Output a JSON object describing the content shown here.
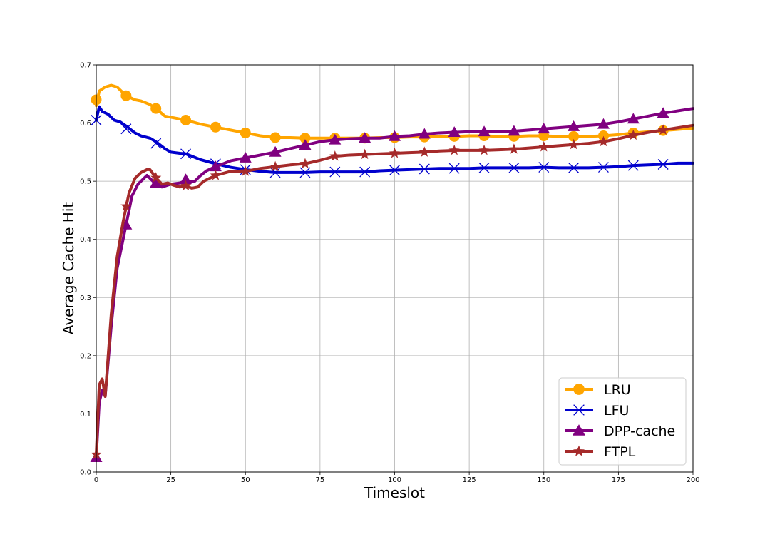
{
  "chart_data": {
    "type": "line",
    "title": "",
    "xlabel": "Timeslot",
    "ylabel": "Average Cache Hit",
    "xlim": [
      0,
      200
    ],
    "ylim": [
      0.0,
      0.7
    ],
    "xticks": [
      0,
      25,
      50,
      75,
      100,
      125,
      150,
      175,
      200
    ],
    "yticks": [
      0.0,
      0.1,
      0.2,
      0.3,
      0.4,
      0.5,
      0.6,
      0.7
    ],
    "xtick_labels": [
      "0",
      "25",
      "50",
      "75",
      "100",
      "125",
      "150",
      "175",
      "200"
    ],
    "ytick_labels": [
      "0.0",
      "0.1",
      "0.2",
      "0.3",
      "0.4",
      "0.5",
      "0.6",
      "0.7"
    ],
    "grid": true,
    "legend_position": "lower-right",
    "series": [
      {
        "name": "LRU",
        "color": "#FFA500",
        "marker": "circle",
        "points": [
          [
            0,
            0.63
          ],
          [
            1,
            0.655
          ],
          [
            3,
            0.662
          ],
          [
            5,
            0.665
          ],
          [
            7,
            0.662
          ],
          [
            10,
            0.647
          ],
          [
            13,
            0.64
          ],
          [
            15,
            0.638
          ],
          [
            18,
            0.632
          ],
          [
            20,
            0.625
          ],
          [
            23,
            0.612
          ],
          [
            25,
            0.61
          ],
          [
            28,
            0.607
          ],
          [
            30,
            0.605
          ],
          [
            35,
            0.598
          ],
          [
            40,
            0.593
          ],
          [
            45,
            0.588
          ],
          [
            50,
            0.583
          ],
          [
            55,
            0.578
          ],
          [
            60,
            0.575
          ],
          [
            65,
            0.575
          ],
          [
            70,
            0.574
          ],
          [
            75,
            0.574
          ],
          [
            80,
            0.574
          ],
          [
            85,
            0.574
          ],
          [
            90,
            0.574
          ],
          [
            95,
            0.575
          ],
          [
            100,
            0.575
          ],
          [
            105,
            0.576
          ],
          [
            110,
            0.576
          ],
          [
            115,
            0.577
          ],
          [
            120,
            0.577
          ],
          [
            125,
            0.578
          ],
          [
            130,
            0.578
          ],
          [
            135,
            0.577
          ],
          [
            140,
            0.577
          ],
          [
            145,
            0.578
          ],
          [
            150,
            0.578
          ],
          [
            155,
            0.577
          ],
          [
            160,
            0.577
          ],
          [
            165,
            0.577
          ],
          [
            170,
            0.578
          ],
          [
            175,
            0.58
          ],
          [
            180,
            0.583
          ],
          [
            185,
            0.585
          ],
          [
            190,
            0.587
          ],
          [
            195,
            0.589
          ],
          [
            200,
            0.591
          ]
        ],
        "marker_points": [
          [
            0,
            0.64
          ],
          [
            10,
            0.647
          ],
          [
            20,
            0.625
          ],
          [
            30,
            0.605
          ],
          [
            40,
            0.593
          ],
          [
            50,
            0.583
          ],
          [
            60,
            0.575
          ],
          [
            70,
            0.574
          ],
          [
            80,
            0.574
          ],
          [
            90,
            0.574
          ],
          [
            100,
            0.575
          ],
          [
            110,
            0.576
          ],
          [
            120,
            0.577
          ],
          [
            130,
            0.578
          ],
          [
            140,
            0.577
          ],
          [
            150,
            0.578
          ],
          [
            160,
            0.577
          ],
          [
            170,
            0.578
          ],
          [
            180,
            0.583
          ],
          [
            190,
            0.587
          ]
        ]
      },
      {
        "name": "LFU",
        "color": "#0000CD",
        "marker": "x",
        "points": [
          [
            0,
            0.605
          ],
          [
            1,
            0.628
          ],
          [
            2,
            0.62
          ],
          [
            4,
            0.615
          ],
          [
            6,
            0.605
          ],
          [
            8,
            0.602
          ],
          [
            10,
            0.595
          ],
          [
            13,
            0.583
          ],
          [
            15,
            0.578
          ],
          [
            18,
            0.574
          ],
          [
            20,
            0.568
          ],
          [
            23,
            0.556
          ],
          [
            25,
            0.55
          ],
          [
            28,
            0.548
          ],
          [
            30,
            0.547
          ],
          [
            35,
            0.537
          ],
          [
            40,
            0.53
          ],
          [
            45,
            0.524
          ],
          [
            50,
            0.52
          ],
          [
            55,
            0.517
          ],
          [
            60,
            0.515
          ],
          [
            65,
            0.515
          ],
          [
            70,
            0.515
          ],
          [
            75,
            0.516
          ],
          [
            80,
            0.516
          ],
          [
            85,
            0.516
          ],
          [
            90,
            0.516
          ],
          [
            95,
            0.518
          ],
          [
            100,
            0.519
          ],
          [
            105,
            0.52
          ],
          [
            110,
            0.521
          ],
          [
            115,
            0.522
          ],
          [
            120,
            0.522
          ],
          [
            125,
            0.522
          ],
          [
            130,
            0.523
          ],
          [
            135,
            0.523
          ],
          [
            140,
            0.523
          ],
          [
            145,
            0.523
          ],
          [
            150,
            0.524
          ],
          [
            155,
            0.523
          ],
          [
            160,
            0.523
          ],
          [
            165,
            0.523
          ],
          [
            170,
            0.524
          ],
          [
            175,
            0.525
          ],
          [
            180,
            0.527
          ],
          [
            185,
            0.528
          ],
          [
            190,
            0.529
          ],
          [
            195,
            0.531
          ],
          [
            200,
            0.531
          ]
        ],
        "marker_points": [
          [
            0,
            0.605
          ],
          [
            10,
            0.59
          ],
          [
            20,
            0.565
          ],
          [
            30,
            0.547
          ],
          [
            40,
            0.53
          ],
          [
            50,
            0.52
          ],
          [
            60,
            0.515
          ],
          [
            70,
            0.515
          ],
          [
            80,
            0.516
          ],
          [
            90,
            0.516
          ],
          [
            100,
            0.519
          ],
          [
            110,
            0.521
          ],
          [
            120,
            0.522
          ],
          [
            130,
            0.523
          ],
          [
            140,
            0.523
          ],
          [
            150,
            0.524
          ],
          [
            160,
            0.523
          ],
          [
            170,
            0.524
          ],
          [
            180,
            0.527
          ],
          [
            190,
            0.529
          ]
        ]
      },
      {
        "name": "DPP-cache",
        "color": "#800080",
        "marker": "triangle",
        "points": [
          [
            0,
            0.025
          ],
          [
            1,
            0.12
          ],
          [
            2,
            0.14
          ],
          [
            3,
            0.13
          ],
          [
            5,
            0.25
          ],
          [
            7,
            0.35
          ],
          [
            9,
            0.4
          ],
          [
            10,
            0.425
          ],
          [
            12,
            0.475
          ],
          [
            14,
            0.495
          ],
          [
            17,
            0.51
          ],
          [
            19,
            0.5
          ],
          [
            20,
            0.497
          ],
          [
            22,
            0.49
          ],
          [
            25,
            0.495
          ],
          [
            28,
            0.497
          ],
          [
            30,
            0.5
          ],
          [
            33,
            0.5
          ],
          [
            35,
            0.51
          ],
          [
            37,
            0.518
          ],
          [
            40,
            0.525
          ],
          [
            45,
            0.535
          ],
          [
            50,
            0.54
          ],
          [
            55,
            0.545
          ],
          [
            60,
            0.55
          ],
          [
            65,
            0.556
          ],
          [
            70,
            0.562
          ],
          [
            75,
            0.568
          ],
          [
            80,
            0.571
          ],
          [
            85,
            0.573
          ],
          [
            90,
            0.574
          ],
          [
            95,
            0.574
          ],
          [
            100,
            0.577
          ],
          [
            105,
            0.578
          ],
          [
            110,
            0.581
          ],
          [
            115,
            0.583
          ],
          [
            120,
            0.584
          ],
          [
            125,
            0.585
          ],
          [
            130,
            0.585
          ],
          [
            135,
            0.585
          ],
          [
            140,
            0.586
          ],
          [
            145,
            0.588
          ],
          [
            150,
            0.59
          ],
          [
            155,
            0.592
          ],
          [
            160,
            0.594
          ],
          [
            165,
            0.596
          ],
          [
            170,
            0.598
          ],
          [
            175,
            0.602
          ],
          [
            180,
            0.607
          ],
          [
            185,
            0.612
          ],
          [
            190,
            0.617
          ],
          [
            195,
            0.621
          ],
          [
            200,
            0.625
          ]
        ],
        "marker_points": [
          [
            0,
            0.025
          ],
          [
            10,
            0.425
          ],
          [
            20,
            0.497
          ],
          [
            30,
            0.503
          ],
          [
            40,
            0.525
          ],
          [
            50,
            0.54
          ],
          [
            60,
            0.55
          ],
          [
            70,
            0.562
          ],
          [
            80,
            0.571
          ],
          [
            90,
            0.574
          ],
          [
            100,
            0.577
          ],
          [
            110,
            0.581
          ],
          [
            120,
            0.584
          ],
          [
            130,
            0.585
          ],
          [
            140,
            0.586
          ],
          [
            150,
            0.59
          ],
          [
            160,
            0.594
          ],
          [
            170,
            0.598
          ],
          [
            180,
            0.607
          ],
          [
            190,
            0.617
          ]
        ]
      },
      {
        "name": "FTPL",
        "color": "#A52A2A",
        "marker": "star",
        "points": [
          [
            0,
            0.03
          ],
          [
            1,
            0.15
          ],
          [
            2,
            0.16
          ],
          [
            3,
            0.13
          ],
          [
            5,
            0.27
          ],
          [
            7,
            0.37
          ],
          [
            9,
            0.43
          ],
          [
            10,
            0.455
          ],
          [
            11,
            0.48
          ],
          [
            13,
            0.505
          ],
          [
            15,
            0.515
          ],
          [
            17,
            0.52
          ],
          [
            18,
            0.52
          ],
          [
            20,
            0.506
          ],
          [
            22,
            0.495
          ],
          [
            24,
            0.497
          ],
          [
            26,
            0.493
          ],
          [
            28,
            0.49
          ],
          [
            30,
            0.492
          ],
          [
            32,
            0.488
          ],
          [
            34,
            0.49
          ],
          [
            36,
            0.5
          ],
          [
            38,
            0.505
          ],
          [
            40,
            0.51
          ],
          [
            45,
            0.517
          ],
          [
            50,
            0.517
          ],
          [
            55,
            0.522
          ],
          [
            60,
            0.525
          ],
          [
            65,
            0.528
          ],
          [
            70,
            0.53
          ],
          [
            75,
            0.536
          ],
          [
            80,
            0.543
          ],
          [
            85,
            0.545
          ],
          [
            90,
            0.546
          ],
          [
            95,
            0.547
          ],
          [
            100,
            0.548
          ],
          [
            105,
            0.549
          ],
          [
            110,
            0.55
          ],
          [
            115,
            0.552
          ],
          [
            120,
            0.553
          ],
          [
            125,
            0.553
          ],
          [
            130,
            0.553
          ],
          [
            135,
            0.554
          ],
          [
            140,
            0.555
          ],
          [
            145,
            0.557
          ],
          [
            150,
            0.559
          ],
          [
            155,
            0.561
          ],
          [
            160,
            0.563
          ],
          [
            165,
            0.565
          ],
          [
            170,
            0.568
          ],
          [
            175,
            0.573
          ],
          [
            180,
            0.579
          ],
          [
            185,
            0.584
          ],
          [
            190,
            0.588
          ],
          [
            195,
            0.592
          ],
          [
            200,
            0.596
          ]
        ],
        "marker_points": [
          [
            0,
            0.03
          ],
          [
            10,
            0.457
          ],
          [
            20,
            0.506
          ],
          [
            30,
            0.492
          ],
          [
            40,
            0.51
          ],
          [
            50,
            0.517
          ],
          [
            60,
            0.525
          ],
          [
            70,
            0.53
          ],
          [
            80,
            0.543
          ],
          [
            90,
            0.546
          ],
          [
            100,
            0.548
          ],
          [
            110,
            0.55
          ],
          [
            120,
            0.553
          ],
          [
            130,
            0.553
          ],
          [
            140,
            0.555
          ],
          [
            150,
            0.559
          ],
          [
            160,
            0.563
          ],
          [
            170,
            0.568
          ],
          [
            180,
            0.579
          ],
          [
            190,
            0.588
          ]
        ]
      }
    ]
  }
}
